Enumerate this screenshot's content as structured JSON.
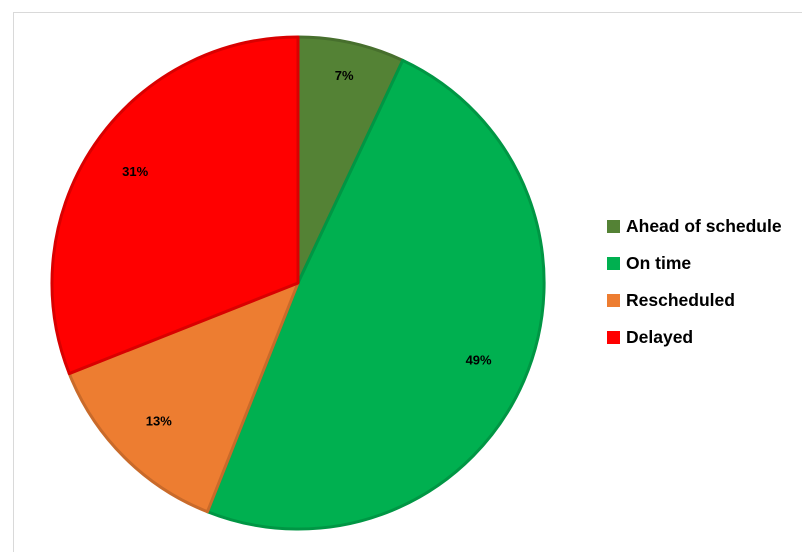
{
  "chart_data": {
    "type": "pie",
    "categories": [
      "Ahead of schedule",
      "On time",
      "Rescheduled",
      "Delayed"
    ],
    "values": [
      7,
      49,
      13,
      31
    ],
    "data_labels": [
      "7%",
      "49%",
      "13%",
      "31%"
    ],
    "colors": [
      "#548235",
      "#00b050",
      "#ed7d31",
      "#ff0000"
    ],
    "start_angle_deg": 0,
    "direction": "clockwise",
    "legend_position": "right",
    "title": ""
  }
}
